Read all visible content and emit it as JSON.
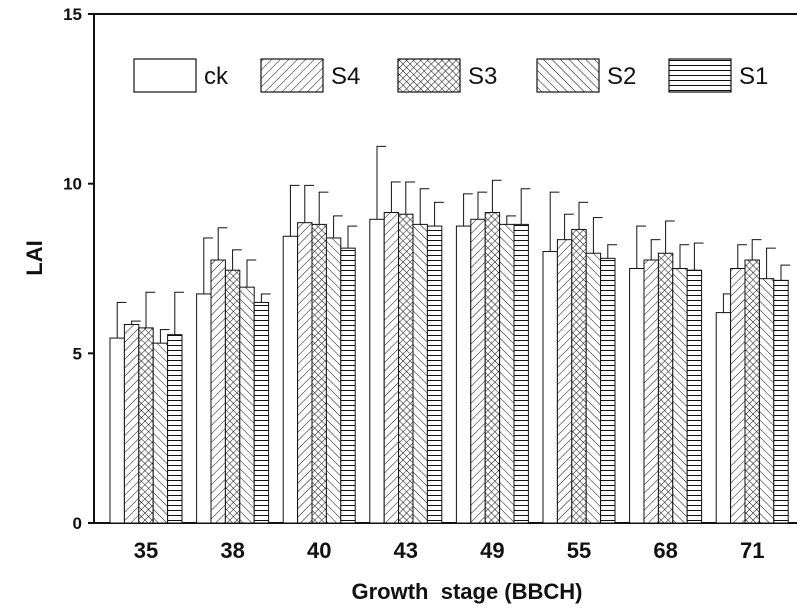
{
  "chart_data": {
    "type": "bar",
    "xlabel": "Growth  stage (BBCH)",
    "ylabel": "LAI",
    "ylim": [
      0,
      15
    ],
    "yticks": [
      0,
      5,
      10,
      15
    ],
    "grid": false,
    "legend_position": "top",
    "categories": [
      "35",
      "38",
      "40",
      "43",
      "49",
      "55",
      "68",
      "71"
    ],
    "series": [
      {
        "name": "ck",
        "pattern": "none",
        "values": [
          5.45,
          6.75,
          8.45,
          8.95,
          8.75,
          8.0,
          7.5,
          6.2
        ],
        "errors": [
          1.05,
          1.65,
          1.5,
          2.15,
          0.95,
          1.75,
          1.25,
          0.55
        ]
      },
      {
        "name": "S4",
        "pattern": "diagonal",
        "values": [
          5.85,
          7.75,
          8.85,
          9.15,
          8.95,
          8.35,
          7.75,
          7.5
        ],
        "errors": [
          0.1,
          0.95,
          1.1,
          0.9,
          0.8,
          0.75,
          0.6,
          0.7
        ]
      },
      {
        "name": "S3",
        "pattern": "crosshatch",
        "values": [
          5.75,
          7.45,
          8.8,
          9.1,
          9.15,
          8.65,
          7.95,
          7.75
        ],
        "errors": [
          1.05,
          0.6,
          0.95,
          0.95,
          0.95,
          0.8,
          0.95,
          0.6
        ]
      },
      {
        "name": "S2",
        "pattern": "backdiagonal",
        "values": [
          5.3,
          6.95,
          8.4,
          8.8,
          8.8,
          7.95,
          7.5,
          7.2
        ],
        "errors": [
          0.4,
          0.8,
          0.65,
          1.05,
          0.25,
          1.05,
          0.7,
          0.9
        ]
      },
      {
        "name": "S1",
        "pattern": "horizontal",
        "values": [
          5.55,
          6.5,
          8.1,
          8.75,
          8.8,
          7.8,
          7.45,
          7.15
        ],
        "errors": [
          1.25,
          0.25,
          0.65,
          0.7,
          1.05,
          0.4,
          0.8,
          0.45
        ]
      }
    ]
  }
}
